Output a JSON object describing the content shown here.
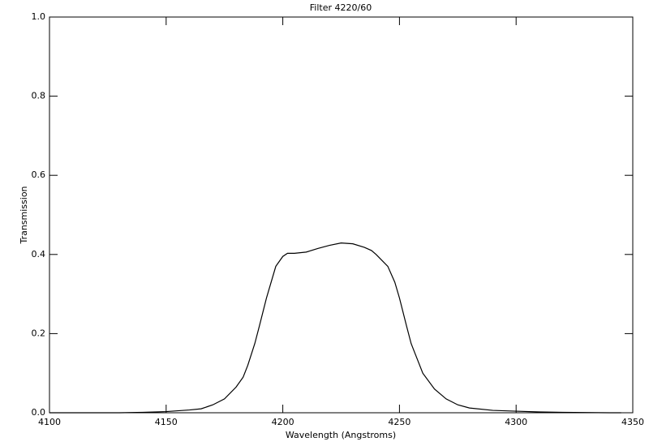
{
  "chart_data": {
    "type": "line",
    "title": "Filter 4220/60",
    "x_label": "Wavelength (Angstroms)",
    "y_label": "Transmission",
    "x": [
      4100,
      4110,
      4120,
      4130,
      4140,
      4150,
      4155,
      4160,
      4165,
      4170,
      4175,
      4180,
      4183,
      4185,
      4188,
      4190,
      4193,
      4195,
      4197,
      4200,
      4202,
      4205,
      4210,
      4215,
      4220,
      4225,
      4230,
      4235,
      4238,
      4240,
      4245,
      4248,
      4250,
      4253,
      4255,
      4258,
      4260,
      4265,
      4270,
      4275,
      4280,
      4290,
      4300,
      4310,
      4320,
      4340,
      4345
    ],
    "series": [
      {
        "color": "#000000",
        "values": [
          0.0,
          0.0,
          0.0,
          0.0,
          0.001,
          0.003,
          0.005,
          0.007,
          0.01,
          0.02,
          0.035,
          0.065,
          0.09,
          0.12,
          0.175,
          0.22,
          0.29,
          0.33,
          0.37,
          0.395,
          0.403,
          0.403,
          0.406,
          0.415,
          0.423,
          0.429,
          0.427,
          0.418,
          0.41,
          0.4,
          0.37,
          0.33,
          0.29,
          0.22,
          0.175,
          0.13,
          0.1,
          0.06,
          0.035,
          0.02,
          0.012,
          0.006,
          0.004,
          0.002,
          0.001,
          0.0,
          0.0
        ]
      }
    ],
    "xlim": [
      4100,
      4350
    ],
    "xticks": [
      4100,
      4150,
      4200,
      4250,
      4300,
      4350
    ],
    "ylim": [
      0.0,
      1.0
    ],
    "yticks": [
      {
        "value": 0.0,
        "label": "0.0"
      },
      0.2,
      0.4,
      0.6,
      0.8,
      {
        "value": 1.0,
        "label": "1.0"
      }
    ]
  }
}
